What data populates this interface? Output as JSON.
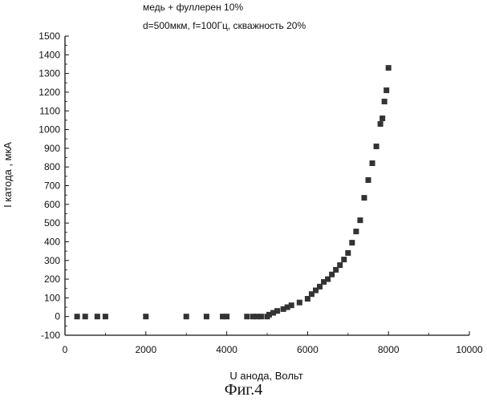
{
  "figure": {
    "annotation_1": "медь + фуллерен 10%",
    "annotation_2": "d=500мкм, f=100Гц, скважность 20%",
    "caption": "Фиг.4"
  },
  "chart_data": {
    "type": "scatter",
    "xlabel": "U анода, Вольт",
    "ylabel": "I катода , мкА",
    "xlim": [
      0,
      10000
    ],
    "ylim": [
      -100,
      1500
    ],
    "x_ticks": [
      0,
      2000,
      4000,
      6000,
      8000,
      10000
    ],
    "y_ticks": [
      -100,
      0,
      100,
      200,
      300,
      400,
      500,
      600,
      700,
      800,
      900,
      1000,
      1100,
      1200,
      1300,
      1400,
      1500
    ],
    "marker": "square",
    "marker_color": "#333333",
    "grid": false,
    "legend": "none",
    "series": [
      {
        "points": [
          [
            300,
            0
          ],
          [
            500,
            0
          ],
          [
            800,
            0
          ],
          [
            1000,
            0
          ],
          [
            2000,
            0
          ],
          [
            3000,
            0
          ],
          [
            3500,
            0
          ],
          [
            3900,
            0
          ],
          [
            4000,
            0
          ],
          [
            4500,
            0
          ],
          [
            4650,
            0
          ],
          [
            4750,
            0
          ],
          [
            4850,
            0
          ],
          [
            5000,
            0
          ],
          [
            5050,
            10
          ],
          [
            5150,
            20
          ],
          [
            5250,
            30
          ],
          [
            5400,
            40
          ],
          [
            5500,
            50
          ],
          [
            5600,
            60
          ],
          [
            5800,
            75
          ],
          [
            6000,
            95
          ],
          [
            6100,
            120
          ],
          [
            6200,
            140
          ],
          [
            6300,
            160
          ],
          [
            6400,
            185
          ],
          [
            6500,
            200
          ],
          [
            6600,
            225
          ],
          [
            6700,
            250
          ],
          [
            6800,
            275
          ],
          [
            6900,
            305
          ],
          [
            7000,
            340
          ],
          [
            7100,
            395
          ],
          [
            7200,
            455
          ],
          [
            7300,
            515
          ],
          [
            7400,
            635
          ],
          [
            7500,
            730
          ],
          [
            7600,
            820
          ],
          [
            7700,
            910
          ],
          [
            7800,
            1030
          ],
          [
            7850,
            1060
          ],
          [
            7900,
            1150
          ],
          [
            7950,
            1210
          ],
          [
            8000,
            1330
          ]
        ]
      }
    ]
  }
}
